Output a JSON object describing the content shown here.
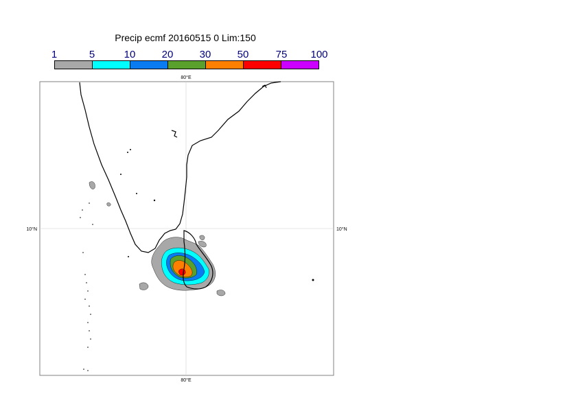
{
  "title": "Precip ecmf 20160515 0 Lim:150",
  "legend": {
    "labels": [
      "1",
      "5",
      "10",
      "20",
      "30",
      "50",
      "75",
      "100"
    ],
    "colors": [
      "#a8a8a8",
      "#00ffff",
      "#0a7bf0",
      "#5aa02c",
      "#ff8000",
      "#ff0000",
      "#cc00ff"
    ]
  },
  "map": {
    "lon_label_top": "80°E",
    "lon_label_bottom": "80°E",
    "lat_label_left": "10°N",
    "lat_label_right": "10°N",
    "gridline_color": "#d0d0d0"
  }
}
